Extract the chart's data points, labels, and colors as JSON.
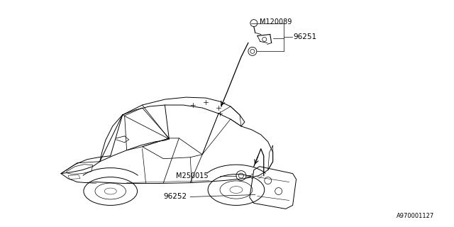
{
  "background_color": "#ffffff",
  "car_color": "#000000",
  "line_color": "#000000",
  "text_color": "#000000",
  "diagram_label": "A970001127",
  "label_M120089": "M120089",
  "label_96251": "96251",
  "label_M250015": "M250015",
  "label_96252": "96252",
  "font_size_part": 7.0,
  "font_size_id": 6.0
}
